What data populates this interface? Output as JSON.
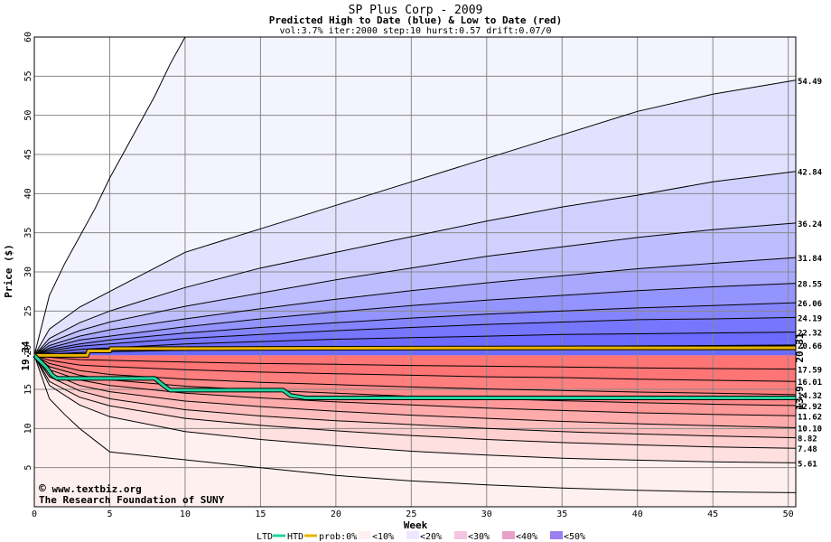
{
  "chart_data": {
    "type": "area",
    "title": "SP Plus Corp - 2009",
    "subtitle": "Predicted High to Date (blue) &  Low to Date (red)",
    "params": "vol:3.7% iter:2000 step:10 hurst:0.57 drift:0.07/0",
    "xlabel": "Week",
    "ylabel": "Price ($)",
    "xlim": [
      0,
      50.5
    ],
    "ylim": [
      0,
      60
    ],
    "xticks": [
      0,
      5,
      10,
      15,
      20,
      25,
      30,
      35,
      40,
      45,
      50
    ],
    "yticks": [
      5,
      10,
      15,
      20,
      25,
      30,
      35,
      40,
      45,
      50,
      55,
      60
    ],
    "grid": true,
    "start_price": 19.34,
    "start_label": "19.34",
    "high_percentiles": [
      {
        "end": 54.49,
        "label": "54.49",
        "points": [
          [
            0,
            19.34
          ],
          [
            1,
            22.7
          ],
          [
            3,
            25.5
          ],
          [
            5,
            27.5
          ],
          [
            10,
            32.5
          ],
          [
            15,
            35.5
          ],
          [
            20,
            38.5
          ],
          [
            25,
            41.5
          ],
          [
            30,
            44.5
          ],
          [
            35,
            47.5
          ],
          [
            40,
            50.5
          ],
          [
            45,
            52.7
          ],
          [
            50.5,
            54.49
          ]
        ]
      },
      {
        "end": 42.84,
        "label": "42.84",
        "points": [
          [
            0,
            19.34
          ],
          [
            1,
            21.5
          ],
          [
            3,
            23.5
          ],
          [
            5,
            25
          ],
          [
            10,
            28
          ],
          [
            15,
            30.5
          ],
          [
            20,
            32.5
          ],
          [
            25,
            34.5
          ],
          [
            30,
            36.5
          ],
          [
            35,
            38.3
          ],
          [
            40,
            39.8
          ],
          [
            45,
            41.5
          ],
          [
            50.5,
            42.84
          ]
        ]
      },
      {
        "end": 36.24,
        "label": "36.24",
        "points": [
          [
            0,
            19.34
          ],
          [
            1,
            21
          ],
          [
            3,
            22.5
          ],
          [
            5,
            23.6
          ],
          [
            10,
            25.6
          ],
          [
            15,
            27.3
          ],
          [
            20,
            29
          ],
          [
            25,
            30.5
          ],
          [
            30,
            32
          ],
          [
            35,
            33.2
          ],
          [
            40,
            34.4
          ],
          [
            45,
            35.4
          ],
          [
            50.5,
            36.24
          ]
        ]
      },
      {
        "end": 31.84,
        "label": "31.84",
        "points": [
          [
            0,
            19.34
          ],
          [
            1,
            20.6
          ],
          [
            3,
            21.8
          ],
          [
            5,
            22.6
          ],
          [
            10,
            24
          ],
          [
            15,
            25.3
          ],
          [
            20,
            26.5
          ],
          [
            25,
            27.6
          ],
          [
            30,
            28.6
          ],
          [
            35,
            29.5
          ],
          [
            40,
            30.4
          ],
          [
            45,
            31.1
          ],
          [
            50.5,
            31.84
          ]
        ]
      },
      {
        "end": 28.55,
        "label": "28.55",
        "points": [
          [
            0,
            19.34
          ],
          [
            1,
            20.3
          ],
          [
            3,
            21.3
          ],
          [
            5,
            21.8
          ],
          [
            10,
            23
          ],
          [
            15,
            24
          ],
          [
            20,
            24.9
          ],
          [
            25,
            25.7
          ],
          [
            30,
            26.4
          ],
          [
            35,
            27
          ],
          [
            40,
            27.6
          ],
          [
            45,
            28.1
          ],
          [
            50.5,
            28.55
          ]
        ]
      },
      {
        "end": 26.06,
        "label": "26.06",
        "points": [
          [
            0,
            19.34
          ],
          [
            1,
            20.1
          ],
          [
            3,
            20.8
          ],
          [
            5,
            21.3
          ],
          [
            10,
            22.2
          ],
          [
            15,
            22.9
          ],
          [
            20,
            23.5
          ],
          [
            25,
            24.1
          ],
          [
            30,
            24.6
          ],
          [
            35,
            25
          ],
          [
            40,
            25.4
          ],
          [
            45,
            25.7
          ],
          [
            50.5,
            26.06
          ]
        ]
      },
      {
        "end": 24.19,
        "label": "24.19",
        "points": [
          [
            0,
            19.34
          ],
          [
            1,
            19.9
          ],
          [
            3,
            20.5
          ],
          [
            5,
            20.8
          ],
          [
            10,
            21.5
          ],
          [
            15,
            22
          ],
          [
            20,
            22.5
          ],
          [
            25,
            22.9
          ],
          [
            30,
            23.3
          ],
          [
            35,
            23.6
          ],
          [
            40,
            23.9
          ],
          [
            45,
            24
          ],
          [
            50.5,
            24.19
          ]
        ]
      },
      {
        "end": 22.32,
        "label": "22.32",
        "points": [
          [
            0,
            19.34
          ],
          [
            1,
            19.7
          ],
          [
            3,
            20.1
          ],
          [
            5,
            20.3
          ],
          [
            10,
            20.8
          ],
          [
            15,
            21.1
          ],
          [
            20,
            21.4
          ],
          [
            25,
            21.6
          ],
          [
            30,
            21.8
          ],
          [
            35,
            22
          ],
          [
            40,
            22.1
          ],
          [
            45,
            22.2
          ],
          [
            50.5,
            22.32
          ]
        ]
      },
      {
        "end": 20.66,
        "label": "20.66",
        "points": [
          [
            0,
            19.34
          ],
          [
            1,
            19.5
          ],
          [
            3,
            19.7
          ],
          [
            5,
            19.8
          ],
          [
            10,
            20
          ],
          [
            15,
            20.1
          ],
          [
            20,
            20.2
          ],
          [
            25,
            20.3
          ],
          [
            30,
            20.4
          ],
          [
            35,
            20.5
          ],
          [
            40,
            20.55
          ],
          [
            45,
            20.6
          ],
          [
            50.5,
            20.66
          ]
        ]
      }
    ],
    "low_percentiles": [
      {
        "end": 17.59,
        "label": "17.59",
        "points": [
          [
            0,
            19.34
          ],
          [
            1,
            19.1
          ],
          [
            3,
            18.8
          ],
          [
            5,
            18.7
          ],
          [
            10,
            18.5
          ],
          [
            15,
            18.3
          ],
          [
            20,
            18.2
          ],
          [
            25,
            18.05
          ],
          [
            30,
            17.95
          ],
          [
            35,
            17.85
          ],
          [
            40,
            17.75
          ],
          [
            45,
            17.65
          ],
          [
            50.5,
            17.59
          ]
        ]
      },
      {
        "end": 16.01,
        "label": "16.01",
        "points": [
          [
            0,
            19.34
          ],
          [
            1,
            18.7
          ],
          [
            3,
            18.1
          ],
          [
            5,
            17.9
          ],
          [
            10,
            17.5
          ],
          [
            15,
            17.2
          ],
          [
            20,
            17
          ],
          [
            25,
            16.8
          ],
          [
            30,
            16.6
          ],
          [
            35,
            16.5
          ],
          [
            40,
            16.3
          ],
          [
            45,
            16.15
          ],
          [
            50.5,
            16.01
          ]
        ]
      },
      {
        "end": 14.32,
        "label": "14.32",
        "points": [
          [
            0,
            19.34
          ],
          [
            1,
            18.3
          ],
          [
            3,
            17.4
          ],
          [
            5,
            16.9
          ],
          [
            10,
            16.3
          ],
          [
            15,
            15.9
          ],
          [
            20,
            15.6
          ],
          [
            25,
            15.3
          ],
          [
            30,
            15.05
          ],
          [
            35,
            14.85
          ],
          [
            40,
            14.65
          ],
          [
            45,
            14.5
          ],
          [
            50.5,
            14.32
          ]
        ]
      },
      {
        "end": 12.92,
        "label": "12.92",
        "points": [
          [
            0,
            19.34
          ],
          [
            1,
            17.9
          ],
          [
            3,
            16.8
          ],
          [
            5,
            16.2
          ],
          [
            10,
            15.4
          ],
          [
            15,
            14.9
          ],
          [
            20,
            14.5
          ],
          [
            25,
            14.1
          ],
          [
            30,
            13.8
          ],
          [
            35,
            13.55
          ],
          [
            40,
            13.3
          ],
          [
            45,
            13.1
          ],
          [
            50.5,
            12.92
          ]
        ]
      },
      {
        "end": 11.62,
        "label": "11.62",
        "points": [
          [
            0,
            19.34
          ],
          [
            1,
            17.5
          ],
          [
            3,
            16.2
          ],
          [
            5,
            15.5
          ],
          [
            10,
            14.5
          ],
          [
            15,
            13.9
          ],
          [
            20,
            13.4
          ],
          [
            25,
            13
          ],
          [
            30,
            12.6
          ],
          [
            35,
            12.3
          ],
          [
            40,
            12
          ],
          [
            45,
            11.8
          ],
          [
            50.5,
            11.62
          ]
        ]
      },
      {
        "end": 10.1,
        "label": "10.10",
        "points": [
          [
            0,
            19.34
          ],
          [
            1,
            17.1
          ],
          [
            3,
            15.5
          ],
          [
            5,
            14.7
          ],
          [
            10,
            13.5
          ],
          [
            15,
            12.8
          ],
          [
            20,
            12.2
          ],
          [
            25,
            11.7
          ],
          [
            30,
            11.3
          ],
          [
            35,
            10.9
          ],
          [
            40,
            10.6
          ],
          [
            45,
            10.35
          ],
          [
            50.5,
            10.1
          ]
        ]
      },
      {
        "end": 8.82,
        "label": "8.82",
        "points": [
          [
            0,
            19.34
          ],
          [
            1,
            16.6
          ],
          [
            3,
            14.8
          ],
          [
            5,
            13.8
          ],
          [
            10,
            12.4
          ],
          [
            15,
            11.6
          ],
          [
            20,
            11
          ],
          [
            25,
            10.5
          ],
          [
            30,
            10
          ],
          [
            35,
            9.6
          ],
          [
            40,
            9.3
          ],
          [
            45,
            9.05
          ],
          [
            50.5,
            8.82
          ]
        ]
      },
      {
        "end": 7.48,
        "label": "7.48",
        "points": [
          [
            0,
            19.34
          ],
          [
            1,
            16
          ],
          [
            3,
            14
          ],
          [
            5,
            12.9
          ],
          [
            10,
            11.3
          ],
          [
            15,
            10.4
          ],
          [
            20,
            9.7
          ],
          [
            25,
            9.1
          ],
          [
            30,
            8.6
          ],
          [
            35,
            8.2
          ],
          [
            40,
            7.9
          ],
          [
            45,
            7.65
          ],
          [
            50.5,
            7.48
          ]
        ]
      },
      {
        "end": 5.61,
        "label": "5.61",
        "points": [
          [
            0,
            19.34
          ],
          [
            1,
            15.5
          ],
          [
            3,
            13
          ],
          [
            5,
            11.5
          ],
          [
            10,
            9.6
          ],
          [
            15,
            8.6
          ],
          [
            20,
            7.8
          ],
          [
            25,
            7.1
          ],
          [
            30,
            6.6
          ],
          [
            35,
            6.2
          ],
          [
            40,
            5.95
          ],
          [
            45,
            5.75
          ],
          [
            50.5,
            5.61
          ]
        ]
      }
    ],
    "outer_high": [
      [
        0,
        19.34
      ],
      [
        1,
        27
      ],
      [
        2,
        31
      ],
      [
        3,
        34.5
      ],
      [
        4,
        38
      ],
      [
        5,
        42
      ],
      [
        6,
        45.5
      ],
      [
        7,
        49
      ],
      [
        8,
        52.5
      ],
      [
        9,
        56.5
      ],
      [
        10,
        60
      ]
    ],
    "outer_low": [
      [
        0,
        19.34
      ],
      [
        1,
        13.8
      ],
      [
        2,
        11.8
      ],
      [
        3,
        10
      ],
      [
        4,
        8.5
      ],
      [
        5,
        7
      ],
      [
        10,
        6
      ],
      [
        15,
        5
      ],
      [
        20,
        4
      ],
      [
        25,
        3.3
      ],
      [
        30,
        2.8
      ],
      [
        35,
        2.4
      ],
      [
        40,
        2.1
      ],
      [
        45,
        1.9
      ],
      [
        50.5,
        1.8
      ]
    ],
    "htd_series": {
      "name": "HTD",
      "color": "#E8B400",
      "end_label": "20.31",
      "end": 20.31,
      "points": [
        [
          0,
          19.34
        ],
        [
          3.5,
          19.34
        ],
        [
          3.6,
          19.9
        ],
        [
          5,
          19.9
        ],
        [
          5.1,
          20.2
        ],
        [
          10,
          20.2
        ],
        [
          20,
          20.25
        ],
        [
          30,
          20.28
        ],
        [
          40,
          20.3
        ],
        [
          50.5,
          20.31
        ]
      ]
    },
    "ltd_series": {
      "name": "LTD",
      "color": "#22D4A0",
      "end_label": "13.9",
      "end": 13.9,
      "points": [
        [
          0,
          19.34
        ],
        [
          0.8,
          17.8
        ],
        [
          1.2,
          16.8
        ],
        [
          1.5,
          16.4
        ],
        [
          8,
          16.4
        ],
        [
          8.5,
          15.6
        ],
        [
          9,
          14.9
        ],
        [
          16.5,
          14.9
        ],
        [
          17,
          14.2
        ],
        [
          18,
          13.9
        ],
        [
          50.5,
          13.9
        ]
      ]
    },
    "colors": {
      "blue_bands": [
        "#F4F4FF",
        "#E2E2FF",
        "#D0D0FF",
        "#BEBEFF",
        "#A8A8FF",
        "#9494FF",
        "#8484FF",
        "#7676FF",
        "#6A6AFF"
      ],
      "red_bands": [
        "#FFF0F0",
        "#FFE0E0",
        "#FFD0D0",
        "#FFBEBE",
        "#FFABAB",
        "#FF9898",
        "#FF8A8A",
        "#FF7E7E",
        "#FF7474"
      ],
      "start_label": "#008800",
      "htd_label": "#A07800",
      "ltd_label": "#1E9E86"
    }
  },
  "credits": {
    "copyright": "©",
    "site": "www.textbiz.org",
    "org": "The Research Foundation of SUNY"
  },
  "legend": {
    "ltd": "LTD",
    "htd": "HTD",
    "prob": "prob:0%",
    "p10": "<10%",
    "p20": "<20%",
    "p30": "<30%",
    "p40": "<40%",
    "p50": "<50%"
  }
}
